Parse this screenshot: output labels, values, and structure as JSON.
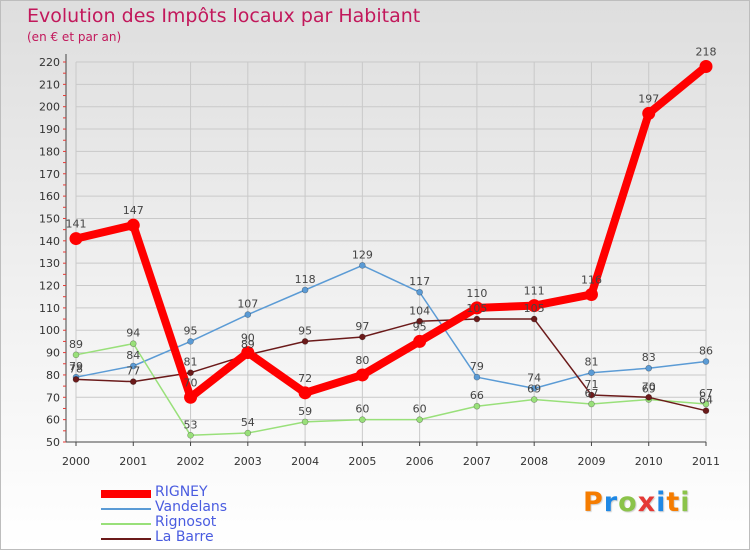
{
  "header": {
    "title": "Evolution des Impôts locaux par Habitant",
    "subtitle": "(en € et par an)"
  },
  "logo": {
    "text": "Proxiti",
    "letter_colors": [
      "#f57c00",
      "#1e88e5",
      "#8bc34a",
      "#e53935",
      "#1e88e5",
      "#f57c00",
      "#8bc34a"
    ]
  },
  "chart_data": {
    "type": "line",
    "title": "Evolution des Impôts locaux par Habitant",
    "subtitle": "(en € et par an)",
    "xlabel": "",
    "ylabel": "",
    "categories": [
      "2000",
      "2001",
      "2002",
      "2003",
      "2004",
      "2005",
      "2006",
      "2007",
      "2008",
      "2009",
      "2010",
      "2011"
    ],
    "ylim": [
      50,
      220
    ],
    "yticks": [
      "50",
      "60",
      "70",
      "80",
      "90",
      "100",
      "110",
      "120",
      "130",
      "140",
      "150",
      "160",
      "170",
      "180",
      "190",
      "200",
      "210",
      "220"
    ],
    "grid": true,
    "legend_position": "bottom-left",
    "series": [
      {
        "name": "Vandelans",
        "color": "#5b9bd5",
        "values": [
          79,
          84,
          95,
          107,
          118,
          129,
          117,
          79,
          74,
          81,
          83,
          86
        ],
        "labels": [
          "79",
          "84",
          "95",
          "107",
          "118",
          "129",
          "117",
          "79",
          "74",
          "81",
          "83",
          "86"
        ]
      },
      {
        "name": "Rignosot",
        "color": "#99e07a",
        "values": [
          89,
          94,
          53,
          54,
          59,
          60,
          60,
          66,
          69,
          67,
          69,
          67
        ],
        "labels": [
          "89",
          "94",
          "53",
          "54",
          "59",
          "60",
          "60",
          "66",
          "69",
          "67",
          "69",
          "67"
        ]
      },
      {
        "name": "La Barre",
        "color": "#6b1a1a",
        "values": [
          78,
          77,
          81,
          89,
          95,
          97,
          104,
          105,
          105,
          71,
          70,
          64
        ],
        "labels": [
          "78",
          "77",
          "81",
          "89",
          "95",
          "97",
          "104",
          "105",
          "105",
          "71",
          "70",
          "64"
        ]
      },
      {
        "name": "RIGNEY",
        "color": "#ff0000",
        "values": [
          141,
          147,
          70,
          90,
          72,
          80,
          95,
          110,
          111,
          116,
          197,
          218
        ],
        "labels": [
          "141",
          "147",
          "70",
          "90",
          "72",
          "80",
          "95",
          "110",
          "111",
          "116",
          "197",
          "218"
        ]
      }
    ],
    "legend_order": [
      "RIGNEY",
      "Vandelans",
      "Rignosot",
      "La Barre"
    ]
  }
}
